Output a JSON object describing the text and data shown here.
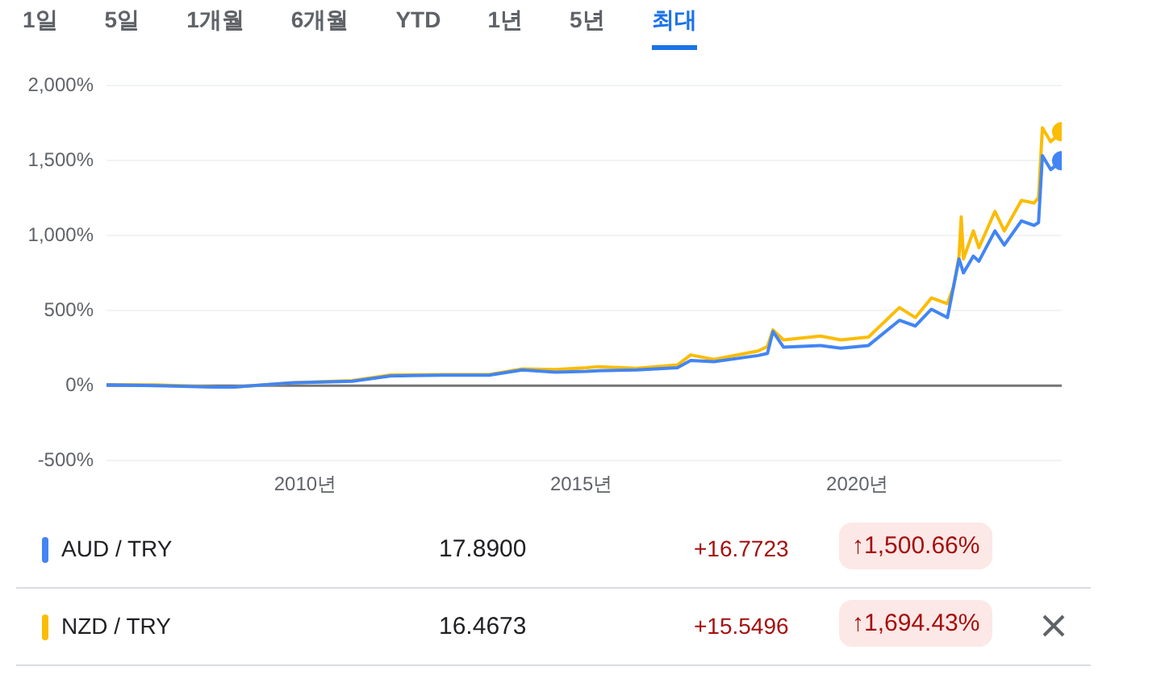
{
  "chart_data": {
    "type": "line",
    "x": [
      2006.4,
      2007.3,
      2008.4,
      2008.7,
      2009.75,
      2010.85,
      2011.54,
      2012.5,
      2013.33,
      2013.93,
      2014.53,
      2015.1,
      2015.3,
      2016.0,
      2016.74,
      2016.98,
      2017.4,
      2018.2,
      2018.37,
      2018.47,
      2018.66,
      2019.33,
      2019.7,
      2020.2,
      2020.76,
      2021.05,
      2021.34,
      2021.63,
      2021.74,
      2021.84,
      2021.88,
      2021.92,
      2022.1,
      2022.2,
      2022.49,
      2022.66,
      2022.97,
      2023.2,
      2023.28,
      2023.35,
      2023.5,
      2023.7
    ],
    "series": [
      {
        "name": "AUD / TRY",
        "color": "#4285f4",
        "values": [
          5,
          0,
          -10,
          -10,
          19,
          30,
          65,
          70,
          70,
          105,
          90,
          95,
          100,
          105,
          119,
          168,
          160,
          201,
          215,
          361,
          257,
          268,
          250,
          268,
          436,
          398,
          510,
          454,
          659,
          845,
          800,
          752,
          864,
          830,
          1032,
          938,
          1099,
          1069,
          1088,
          1534,
          1441,
          1500
        ]
      },
      {
        "name": "NZD / TRY",
        "color": "#fbbc04",
        "values": [
          7,
          5,
          -10,
          -10,
          19,
          34,
          71,
          74,
          74,
          112,
          108,
          120,
          127,
          115,
          138,
          205,
          175,
          231,
          261,
          372,
          305,
          331,
          305,
          324,
          521,
          454,
          585,
          547,
          659,
          864,
          1125,
          845,
          1032,
          920,
          1162,
          1032,
          1236,
          1218,
          1255,
          1720,
          1627,
          1694
        ]
      }
    ],
    "xlim": [
      2006.4,
      2023.7
    ],
    "xticks": [
      {
        "value": 2010,
        "label": "2010년"
      },
      {
        "value": 2015,
        "label": "2015년"
      },
      {
        "value": 2020,
        "label": "2020년"
      }
    ],
    "ylim": [
      -500,
      2000
    ],
    "yticks": [
      {
        "value": -500,
        "label": "-500%"
      },
      {
        "value": 0,
        "label": "0%"
      },
      {
        "value": 500,
        "label": "500%"
      },
      {
        "value": 1000,
        "label": "1,000%"
      },
      {
        "value": 1500,
        "label": "1,500%"
      },
      {
        "value": 2000,
        "label": "2,000%"
      }
    ],
    "grid": "y",
    "legend": "bottom",
    "marker": "none",
    "line_style": "solid",
    "ref_lines": [
      {
        "axis": "y",
        "value": 0,
        "color": "#757575"
      }
    ],
    "annotations": [
      "1일",
      "5일",
      "1개월",
      "6개월",
      "YTD",
      "1년",
      "5년",
      "최대",
      "17.8900",
      "+16.7723",
      "↑1,500.66%",
      "16.4673",
      "+15.5496",
      "↑1,694.43%"
    ]
  }
}
